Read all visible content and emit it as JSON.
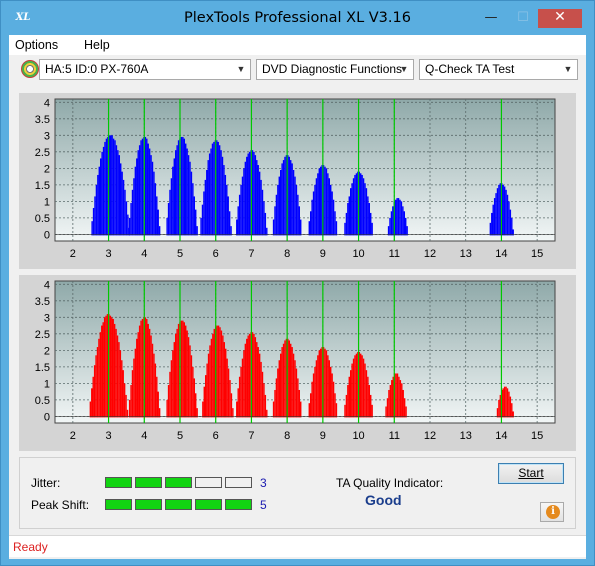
{
  "window": {
    "title": "PlexTools Professional XL V3.16",
    "logo": "XL"
  },
  "titlebar": {
    "minimize": "—",
    "maximize": "☐",
    "close": "✕"
  },
  "menu": {
    "options": "Options",
    "help": "Help"
  },
  "toolbar": {
    "drive": "HA:5 ID:0  PX-760A",
    "function": "DVD Diagnostic Functions",
    "test": "Q-Check TA Test"
  },
  "colors": {
    "top_series": "#0000ff",
    "bottom_series": "#ff0000",
    "marker_lines": "#00c800",
    "status": "#dd2222"
  },
  "chart_data": [
    {
      "type": "bar",
      "title": "",
      "x_ticks": [
        2,
        3,
        4,
        5,
        6,
        7,
        8,
        9,
        10,
        11,
        12,
        13,
        14,
        15
      ],
      "y_ticks": [
        0,
        0.5,
        1,
        1.5,
        2,
        2.5,
        3,
        3.5,
        4
      ],
      "xlim": [
        1.5,
        15.5
      ],
      "ylim": [
        -0.2,
        4.1
      ],
      "marker_lines_x": [
        3,
        4,
        5,
        6,
        7,
        8,
        9,
        10,
        11,
        14
      ],
      "series": [
        {
          "color": "blue",
          "peaks": [
            {
              "center": 3.05,
              "height": 3.0,
              "width": 0.55
            },
            {
              "center": 4.0,
              "height": 2.95,
              "width": 0.45
            },
            {
              "center": 5.05,
              "height": 2.95,
              "width": 0.45
            },
            {
              "center": 6.0,
              "height": 2.85,
              "width": 0.45
            },
            {
              "center": 7.0,
              "height": 2.55,
              "width": 0.45
            },
            {
              "center": 8.0,
              "height": 2.4,
              "width": 0.42
            },
            {
              "center": 9.0,
              "height": 2.1,
              "width": 0.42
            },
            {
              "center": 10.0,
              "height": 1.9,
              "width": 0.42
            },
            {
              "center": 11.1,
              "height": 1.1,
              "width": 0.3
            },
            {
              "center": 14.0,
              "height": 1.55,
              "width": 0.35
            }
          ]
        }
      ]
    },
    {
      "type": "bar",
      "title": "",
      "x_ticks": [
        2,
        3,
        4,
        5,
        6,
        7,
        8,
        9,
        10,
        11,
        12,
        13,
        14,
        15
      ],
      "y_ticks": [
        0,
        0.5,
        1,
        1.5,
        2,
        2.5,
        3,
        3.5,
        4
      ],
      "xlim": [
        1.5,
        15.5
      ],
      "ylim": [
        -0.2,
        4.1
      ],
      "marker_lines_x": [
        3,
        4,
        5,
        6,
        7,
        8,
        9,
        10,
        11,
        14
      ],
      "series": [
        {
          "color": "red",
          "peaks": [
            {
              "center": 3.0,
              "height": 3.1,
              "width": 0.55
            },
            {
              "center": 4.0,
              "height": 3.0,
              "width": 0.45
            },
            {
              "center": 5.05,
              "height": 2.9,
              "width": 0.45
            },
            {
              "center": 6.05,
              "height": 2.75,
              "width": 0.45
            },
            {
              "center": 7.0,
              "height": 2.55,
              "width": 0.45
            },
            {
              "center": 8.0,
              "height": 2.35,
              "width": 0.42
            },
            {
              "center": 9.0,
              "height": 2.1,
              "width": 0.42
            },
            {
              "center": 10.0,
              "height": 1.95,
              "width": 0.42
            },
            {
              "center": 11.05,
              "height": 1.3,
              "width": 0.32
            },
            {
              "center": 14.1,
              "height": 0.9,
              "width": 0.25
            }
          ]
        }
      ]
    }
  ],
  "metrics": {
    "jitter": {
      "label": "Jitter:",
      "value": "3",
      "level": 3,
      "max": 5
    },
    "peak_shift": {
      "label": "Peak Shift:",
      "value": "5",
      "level": 5,
      "max": 5
    },
    "ta_quality_label": "TA Quality Indicator:",
    "ta_quality_value": "Good"
  },
  "buttons": {
    "start": "Start",
    "info": "i"
  },
  "status": {
    "text": "Ready"
  }
}
